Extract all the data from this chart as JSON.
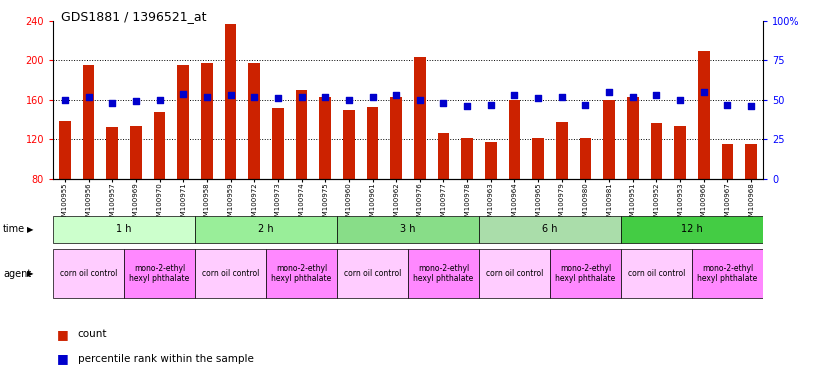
{
  "title": "GDS1881 / 1396521_at",
  "samples": [
    "GSM100955",
    "GSM100956",
    "GSM100957",
    "GSM100969",
    "GSM100970",
    "GSM100971",
    "GSM100958",
    "GSM100959",
    "GSM100972",
    "GSM100973",
    "GSM100974",
    "GSM100975",
    "GSM100960",
    "GSM100961",
    "GSM100962",
    "GSM100976",
    "GSM100977",
    "GSM100978",
    "GSM100963",
    "GSM100964",
    "GSM100965",
    "GSM100979",
    "GSM100980",
    "GSM100981",
    "GSM100951",
    "GSM100952",
    "GSM100953",
    "GSM100966",
    "GSM100967",
    "GSM100968"
  ],
  "counts": [
    138,
    195,
    132,
    133,
    148,
    195,
    197,
    237,
    197,
    152,
    170,
    163,
    150,
    153,
    163,
    204,
    126,
    121,
    117,
    160,
    121,
    137,
    121,
    160,
    163,
    136,
    133,
    210,
    115,
    115
  ],
  "percentiles": [
    50,
    52,
    48,
    49,
    50,
    54,
    52,
    53,
    52,
    51,
    52,
    52,
    50,
    52,
    53,
    50,
    48,
    46,
    47,
    53,
    51,
    52,
    47,
    55,
    52,
    53,
    50,
    55,
    47,
    46
  ],
  "time_groups": [
    {
      "label": "1 h",
      "start": 0,
      "end": 6,
      "color": "#ccffcc"
    },
    {
      "label": "2 h",
      "start": 6,
      "end": 12,
      "color": "#99ee99"
    },
    {
      "label": "3 h",
      "start": 12,
      "end": 18,
      "color": "#88dd88"
    },
    {
      "label": "6 h",
      "start": 18,
      "end": 24,
      "color": "#aaddaa"
    },
    {
      "label": "12 h",
      "start": 24,
      "end": 30,
      "color": "#44cc44"
    }
  ],
  "agent_groups": [
    {
      "label": "corn oil control",
      "start": 0,
      "end": 3,
      "color": "#ffccff"
    },
    {
      "label": "mono-2-ethyl\nhexyl phthalate",
      "start": 3,
      "end": 6,
      "color": "#ff88ff"
    },
    {
      "label": "corn oil control",
      "start": 6,
      "end": 9,
      "color": "#ffccff"
    },
    {
      "label": "mono-2-ethyl\nhexyl phthalate",
      "start": 9,
      "end": 12,
      "color": "#ff88ff"
    },
    {
      "label": "corn oil control",
      "start": 12,
      "end": 15,
      "color": "#ffccff"
    },
    {
      "label": "mono-2-ethyl\nhexyl phthalate",
      "start": 15,
      "end": 18,
      "color": "#ff88ff"
    },
    {
      "label": "corn oil control",
      "start": 18,
      "end": 21,
      "color": "#ffccff"
    },
    {
      "label": "mono-2-ethyl\nhexyl phthalate",
      "start": 21,
      "end": 24,
      "color": "#ff88ff"
    },
    {
      "label": "corn oil control",
      "start": 24,
      "end": 27,
      "color": "#ffccff"
    },
    {
      "label": "mono-2-ethyl\nhexyl phthalate",
      "start": 27,
      "end": 30,
      "color": "#ff88ff"
    }
  ],
  "bar_color": "#cc2200",
  "dot_color": "#0000cc",
  "ylim_left": [
    80,
    240
  ],
  "ylim_right": [
    0,
    100
  ],
  "yticks_left": [
    80,
    120,
    160,
    200,
    240
  ],
  "yticks_right": [
    0,
    25,
    50,
    75,
    100
  ],
  "bg_color": "#ffffff"
}
